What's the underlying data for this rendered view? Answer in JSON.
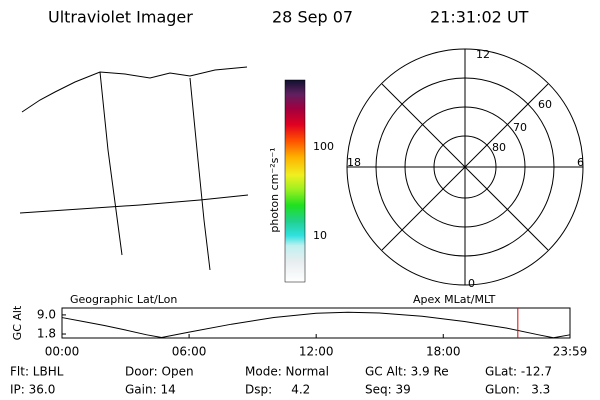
{
  "header": {
    "title": "Ultraviolet Imager",
    "date": "28 Sep 07",
    "time": "21:31:02 UT"
  },
  "map": {
    "label": "Geographic Lat/Lon"
  },
  "colorbar": {
    "label": "photon cm⁻²s⁻¹",
    "ticks": [
      "100",
      "10"
    ]
  },
  "polar": {
    "top": "12",
    "bottom": "0",
    "left": "18",
    "right": "6",
    "rings": [
      "60",
      "70",
      "80"
    ]
  },
  "chart_data": {
    "type": "line",
    "y_label": "GC Alt",
    "right_label": "Apex MLat/MLT",
    "x": [
      0,
      1,
      2,
      3,
      4,
      4.7,
      6,
      8,
      10,
      12,
      13.5,
      15,
      17,
      19,
      21,
      22.5,
      23.2,
      23.98
    ],
    "values": [
      8.0,
      6.5,
      5.0,
      3.3,
      1.5,
      0.5,
      2.5,
      5.5,
      8.0,
      9.6,
      10.0,
      9.7,
      8.5,
      6.5,
      4.0,
      1.5,
      0.4,
      1.5
    ],
    "color": "#000000",
    "xlim": [
      0,
      23.9833
    ],
    "xticks": [
      {
        "value": 0,
        "label": "00:00"
      },
      {
        "value": 6,
        "label": "06:00"
      },
      {
        "value": 12,
        "label": "12:00"
      },
      {
        "value": 18,
        "label": "18:00"
      },
      {
        "value": 23.9833,
        "label": "23:59"
      }
    ],
    "ylim": [
      0.3,
      11.6
    ],
    "yticks": [
      {
        "value": 9,
        "label": "9.0"
      },
      1.8
    ],
    "time_marker": 21.52,
    "marker_color": "#e00000"
  },
  "info": [
    [
      "Flt: LBHL",
      "Door: Open",
      "Mode: Normal",
      "GC Alt: 3.9 Re",
      "GLat: -12.7"
    ],
    [
      "IP: 36.0",
      "Gain: 14",
      "Dsp:     4.2",
      "Seq: 39",
      "GLon:   3.3"
    ]
  ]
}
